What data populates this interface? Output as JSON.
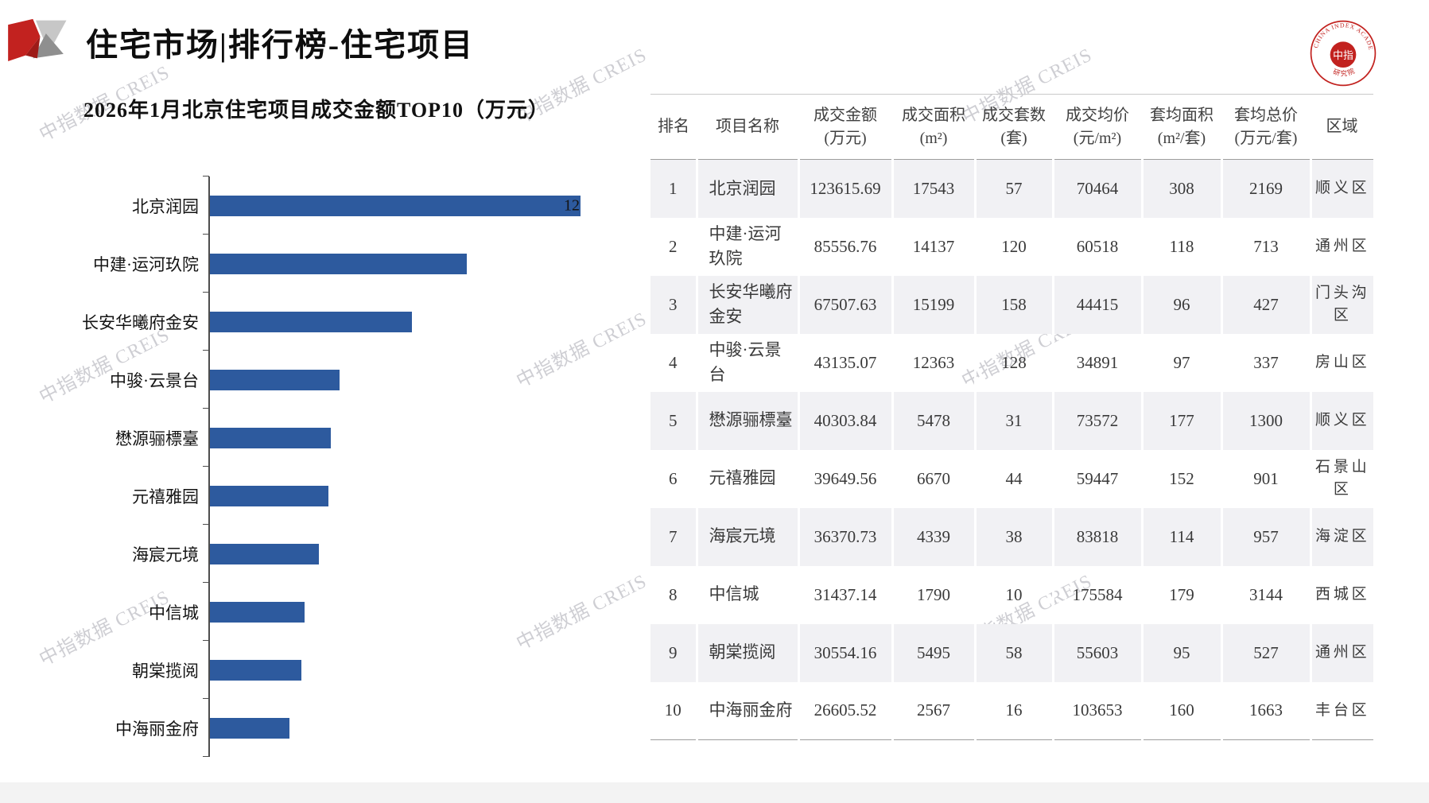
{
  "header": {
    "title": "住宅市场|排行榜-住宅项目"
  },
  "watermark": "中指数据 CREIS",
  "academy_logo": {
    "ring_text_top": "CHINA INDEX ACADEMY",
    "ring_text_bottom": "研究院",
    "center_text": "中指"
  },
  "chart_data": {
    "type": "bar",
    "orientation": "horizontal",
    "title": "2026年1月北京住宅项目成交金额TOP10（万元）",
    "categories": [
      "北京润园",
      "中建·运河玖院",
      "长安华曦府金安",
      "中骏·云景台",
      "懋源骊標臺",
      "元禧雅园",
      "海宸元境",
      "中信城",
      "朝棠揽阅",
      "中海丽金府"
    ],
    "values": [
      123615.69,
      85556.76,
      67507.63,
      43135.07,
      40303.84,
      39649.56,
      36370.73,
      31437.14,
      30554.16,
      26605.52
    ],
    "xlabel": "",
    "ylabel": "",
    "xlim": [
      0,
      123615.69
    ],
    "grid": false,
    "legend": false,
    "bar_color": "#2d5a9e",
    "clipped_first_bar_label": "12"
  },
  "table": {
    "columns": [
      {
        "label": "排名",
        "unit": ""
      },
      {
        "label": "项目名称",
        "unit": ""
      },
      {
        "label": "成交金额",
        "unit": "(万元)"
      },
      {
        "label": "成交面积",
        "unit": "(m²)"
      },
      {
        "label": "成交套数",
        "unit": "(套)"
      },
      {
        "label": "成交均价",
        "unit": "(元/m²)"
      },
      {
        "label": "套均面积",
        "unit": "(m²/套)"
      },
      {
        "label": "套均总价",
        "unit": "(万元/套)"
      },
      {
        "label": "区域",
        "unit": ""
      }
    ],
    "rows": [
      [
        "1",
        "北京润园",
        "123615.69",
        "17543",
        "57",
        "70464",
        "308",
        "2169",
        "顺义区"
      ],
      [
        "2",
        "中建·运河玖院",
        "85556.76",
        "14137",
        "120",
        "60518",
        "118",
        "713",
        "通州区"
      ],
      [
        "3",
        "长安华曦府金安",
        "67507.63",
        "15199",
        "158",
        "44415",
        "96",
        "427",
        "门头沟区"
      ],
      [
        "4",
        "中骏·云景台",
        "43135.07",
        "12363",
        "128",
        "34891",
        "97",
        "337",
        "房山区"
      ],
      [
        "5",
        "懋源骊標臺",
        "40303.84",
        "5478",
        "31",
        "73572",
        "177",
        "1300",
        "顺义区"
      ],
      [
        "6",
        "元禧雅园",
        "39649.56",
        "6670",
        "44",
        "59447",
        "152",
        "901",
        "石景山区"
      ],
      [
        "7",
        "海宸元境",
        "36370.73",
        "4339",
        "38",
        "83818",
        "114",
        "957",
        "海淀区"
      ],
      [
        "8",
        "中信城",
        "31437.14",
        "1790",
        "10",
        "175584",
        "179",
        "3144",
        "西城区"
      ],
      [
        "9",
        "朝棠揽阅",
        "30554.16",
        "5495",
        "58",
        "55603",
        "95",
        "527",
        "通州区"
      ],
      [
        "10",
        "中海丽金府",
        "26605.52",
        "2567",
        "16",
        "103653",
        "160",
        "1663",
        "丰台区"
      ]
    ]
  }
}
